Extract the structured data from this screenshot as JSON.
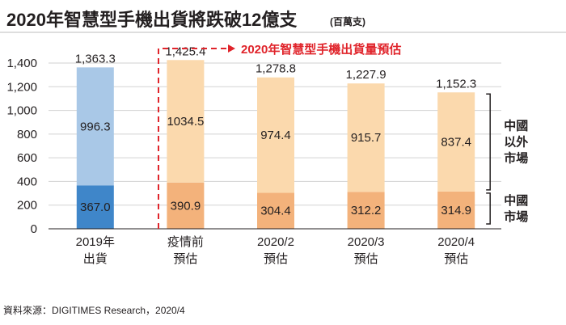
{
  "title": "2020年智慧型手機出貨將跌破12億支",
  "unit": "(百萬支)",
  "forecast_label": "2020年智慧型手機出貨量預估",
  "source": "資料來源：DIGITIMES Research，2020/4",
  "brackets": [
    {
      "lines": [
        "中國",
        "以外",
        "市場"
      ],
      "series": "中國以外市場"
    },
    {
      "lines": [
        "中國",
        "市場"
      ],
      "series": "中國市場"
    }
  ],
  "colors": {
    "actual_china": "#3f86c9",
    "actual_other": "#a9c8e7",
    "forecast_china": "#f3b27b",
    "forecast_other": "#fbd9ad",
    "highlight_total": "#e0242b",
    "forecast_dash": "#e0242b",
    "grid": "#d2d2d2",
    "text": "#231f20"
  },
  "chart_data": {
    "type": "bar",
    "stacked": true,
    "categories": [
      [
        "2019年",
        "出貨"
      ],
      [
        "疫情前",
        "預估"
      ],
      [
        "2020/2",
        "預估"
      ],
      [
        "2020/3",
        "預估"
      ],
      [
        "2020/4",
        "預估"
      ]
    ],
    "series": [
      {
        "name": "中國市場",
        "values": [
          367.0,
          390.9,
          304.4,
          312.2,
          314.9
        ]
      },
      {
        "name": "中國以外市場",
        "values": [
          996.3,
          1034.5,
          974.4,
          915.7,
          837.4
        ]
      }
    ],
    "totals": [
      1363.3,
      1425.4,
      1278.8,
      1227.9,
      1152.3
    ],
    "value_labels": {
      "中國市場": [
        "367.0",
        "390.9",
        "304.4",
        "312.2",
        "314.9"
      ],
      "中國以外市場": [
        "996.3",
        "1034.5",
        "974.4",
        "915.7",
        "837.4"
      ],
      "totals": [
        "1,363.3",
        "1,425.4",
        "1,278.8",
        "1,227.9",
        "1,152.3"
      ]
    },
    "highlight_total_index": 4,
    "ylim": [
      0,
      1400
    ],
    "yticks": [
      0,
      200,
      400,
      600,
      800,
      1000,
      1200,
      1400
    ],
    "ytick_labels": [
      "0",
      "200",
      "400",
      "600",
      "800",
      "1,000",
      "1,200",
      "1,400"
    ],
    "grid": true,
    "forecast_start_index": 1,
    "xlabel": "",
    "ylabel": ""
  }
}
